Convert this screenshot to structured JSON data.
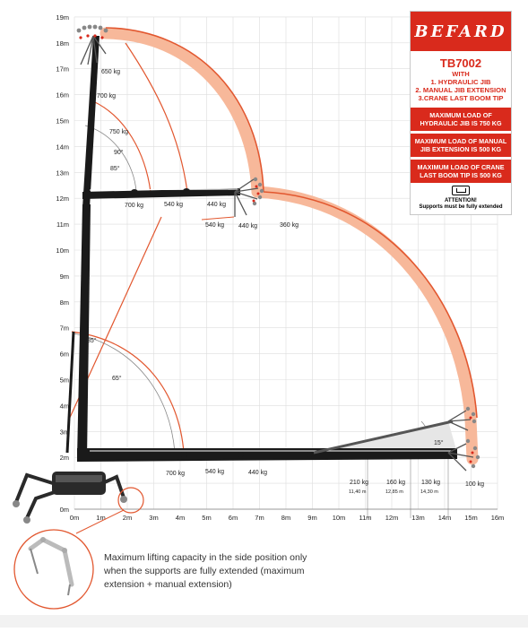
{
  "brand": "BEFARD",
  "model": {
    "title": "TB7002",
    "lines": [
      "WITH",
      "1. HYDRAULIC JIB",
      "2. MANUAL JIB EXTENSION",
      "3.CRANE LAST BOOM TIP"
    ]
  },
  "max_loads": [
    "MAXIMUM LOAD OF HYDRAULIC JIB IS 750 KG",
    "MAXIMUM LOAD OF MANUAL JIB EXTENSION IS 500 KG",
    "MAXIMUM LOAD OF CRANE LAST BOOM TIP IS 500 KG"
  ],
  "attention": {
    "title": "ATTENTION!",
    "text": "Supports must be fully extended"
  },
  "y_ticks": [
    "0m",
    "1m",
    "2m",
    "3m",
    "4m",
    "5m",
    "6m",
    "7m",
    "8m",
    "9m",
    "10m",
    "11m",
    "12m",
    "13m",
    "14m",
    "15m",
    "16m",
    "17m",
    "18m",
    "19m"
  ],
  "x_ticks": [
    "0m",
    "1m",
    "2m",
    "3m",
    "4m",
    "5m",
    "6m",
    "7m",
    "8m",
    "9m",
    "10m",
    "11m",
    "12m",
    "13m",
    "14m",
    "15m",
    "16m"
  ],
  "load_labels": {
    "l650": "650 kg",
    "l700top": "700 kg",
    "l750": "750 kg",
    "a90": "90°",
    "a85top": "85°",
    "mid700": "700 kg",
    "mid540": "540 kg",
    "mid440": "440 kg",
    "r540": "540 kg",
    "r440": "440 kg",
    "r360": "360 kg",
    "a85low": "85°",
    "a65": "65°",
    "b700": "700 kg",
    "b540": "540 kg",
    "b440": "440 kg",
    "a15": "15°",
    "b210": "210 kg",
    "d210": "11,40 m",
    "b160": "160 kg",
    "d160": "12,85 m",
    "b130": "130 kg",
    "d130": "14,30 m",
    "b100": "100 kg"
  },
  "note": "Maximum lifting capacity in the side position only when the supports are fully extended (maximum extension + manual extension)",
  "colors": {
    "accent": "#d92a1c",
    "envelope": "#f7b89a",
    "boom": "#1a1a1a",
    "grid": "#dddddd"
  }
}
